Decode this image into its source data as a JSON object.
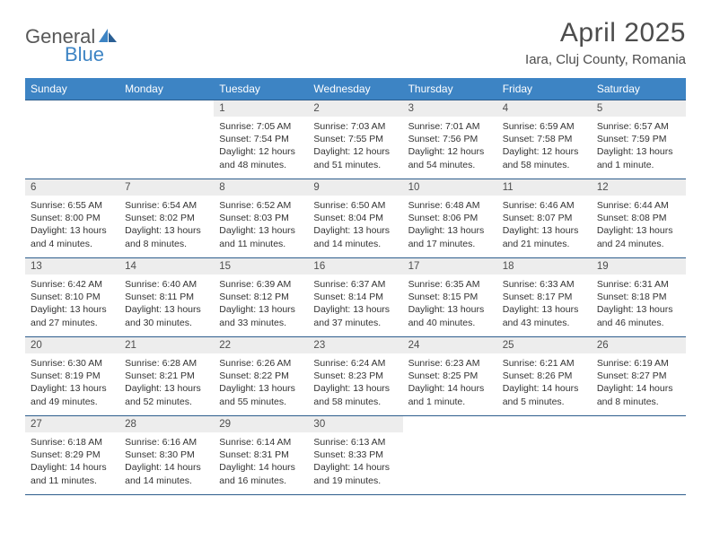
{
  "brand": {
    "general": "General",
    "blue": "Blue"
  },
  "title": "April 2025",
  "location": "Iara, Cluj County, Romania",
  "colors": {
    "header_bg": "#3d84c4",
    "header_text": "#ffffff",
    "daynum_bg": "#ededed",
    "border": "#2d5d8c",
    "title_text": "#4d4d4d"
  },
  "daysOfWeek": [
    "Sunday",
    "Monday",
    "Tuesday",
    "Wednesday",
    "Thursday",
    "Friday",
    "Saturday"
  ],
  "weeks": [
    [
      null,
      null,
      {
        "n": "1",
        "sr": "Sunrise: 7:05 AM",
        "ss": "Sunset: 7:54 PM",
        "dl": "Daylight: 12 hours and 48 minutes."
      },
      {
        "n": "2",
        "sr": "Sunrise: 7:03 AM",
        "ss": "Sunset: 7:55 PM",
        "dl": "Daylight: 12 hours and 51 minutes."
      },
      {
        "n": "3",
        "sr": "Sunrise: 7:01 AM",
        "ss": "Sunset: 7:56 PM",
        "dl": "Daylight: 12 hours and 54 minutes."
      },
      {
        "n": "4",
        "sr": "Sunrise: 6:59 AM",
        "ss": "Sunset: 7:58 PM",
        "dl": "Daylight: 12 hours and 58 minutes."
      },
      {
        "n": "5",
        "sr": "Sunrise: 6:57 AM",
        "ss": "Sunset: 7:59 PM",
        "dl": "Daylight: 13 hours and 1 minute."
      }
    ],
    [
      {
        "n": "6",
        "sr": "Sunrise: 6:55 AM",
        "ss": "Sunset: 8:00 PM",
        "dl": "Daylight: 13 hours and 4 minutes."
      },
      {
        "n": "7",
        "sr": "Sunrise: 6:54 AM",
        "ss": "Sunset: 8:02 PM",
        "dl": "Daylight: 13 hours and 8 minutes."
      },
      {
        "n": "8",
        "sr": "Sunrise: 6:52 AM",
        "ss": "Sunset: 8:03 PM",
        "dl": "Daylight: 13 hours and 11 minutes."
      },
      {
        "n": "9",
        "sr": "Sunrise: 6:50 AM",
        "ss": "Sunset: 8:04 PM",
        "dl": "Daylight: 13 hours and 14 minutes."
      },
      {
        "n": "10",
        "sr": "Sunrise: 6:48 AM",
        "ss": "Sunset: 8:06 PM",
        "dl": "Daylight: 13 hours and 17 minutes."
      },
      {
        "n": "11",
        "sr": "Sunrise: 6:46 AM",
        "ss": "Sunset: 8:07 PM",
        "dl": "Daylight: 13 hours and 21 minutes."
      },
      {
        "n": "12",
        "sr": "Sunrise: 6:44 AM",
        "ss": "Sunset: 8:08 PM",
        "dl": "Daylight: 13 hours and 24 minutes."
      }
    ],
    [
      {
        "n": "13",
        "sr": "Sunrise: 6:42 AM",
        "ss": "Sunset: 8:10 PM",
        "dl": "Daylight: 13 hours and 27 minutes."
      },
      {
        "n": "14",
        "sr": "Sunrise: 6:40 AM",
        "ss": "Sunset: 8:11 PM",
        "dl": "Daylight: 13 hours and 30 minutes."
      },
      {
        "n": "15",
        "sr": "Sunrise: 6:39 AM",
        "ss": "Sunset: 8:12 PM",
        "dl": "Daylight: 13 hours and 33 minutes."
      },
      {
        "n": "16",
        "sr": "Sunrise: 6:37 AM",
        "ss": "Sunset: 8:14 PM",
        "dl": "Daylight: 13 hours and 37 minutes."
      },
      {
        "n": "17",
        "sr": "Sunrise: 6:35 AM",
        "ss": "Sunset: 8:15 PM",
        "dl": "Daylight: 13 hours and 40 minutes."
      },
      {
        "n": "18",
        "sr": "Sunrise: 6:33 AM",
        "ss": "Sunset: 8:17 PM",
        "dl": "Daylight: 13 hours and 43 minutes."
      },
      {
        "n": "19",
        "sr": "Sunrise: 6:31 AM",
        "ss": "Sunset: 8:18 PM",
        "dl": "Daylight: 13 hours and 46 minutes."
      }
    ],
    [
      {
        "n": "20",
        "sr": "Sunrise: 6:30 AM",
        "ss": "Sunset: 8:19 PM",
        "dl": "Daylight: 13 hours and 49 minutes."
      },
      {
        "n": "21",
        "sr": "Sunrise: 6:28 AM",
        "ss": "Sunset: 8:21 PM",
        "dl": "Daylight: 13 hours and 52 minutes."
      },
      {
        "n": "22",
        "sr": "Sunrise: 6:26 AM",
        "ss": "Sunset: 8:22 PM",
        "dl": "Daylight: 13 hours and 55 minutes."
      },
      {
        "n": "23",
        "sr": "Sunrise: 6:24 AM",
        "ss": "Sunset: 8:23 PM",
        "dl": "Daylight: 13 hours and 58 minutes."
      },
      {
        "n": "24",
        "sr": "Sunrise: 6:23 AM",
        "ss": "Sunset: 8:25 PM",
        "dl": "Daylight: 14 hours and 1 minute."
      },
      {
        "n": "25",
        "sr": "Sunrise: 6:21 AM",
        "ss": "Sunset: 8:26 PM",
        "dl": "Daylight: 14 hours and 5 minutes."
      },
      {
        "n": "26",
        "sr": "Sunrise: 6:19 AM",
        "ss": "Sunset: 8:27 PM",
        "dl": "Daylight: 14 hours and 8 minutes."
      }
    ],
    [
      {
        "n": "27",
        "sr": "Sunrise: 6:18 AM",
        "ss": "Sunset: 8:29 PM",
        "dl": "Daylight: 14 hours and 11 minutes."
      },
      {
        "n": "28",
        "sr": "Sunrise: 6:16 AM",
        "ss": "Sunset: 8:30 PM",
        "dl": "Daylight: 14 hours and 14 minutes."
      },
      {
        "n": "29",
        "sr": "Sunrise: 6:14 AM",
        "ss": "Sunset: 8:31 PM",
        "dl": "Daylight: 14 hours and 16 minutes."
      },
      {
        "n": "30",
        "sr": "Sunrise: 6:13 AM",
        "ss": "Sunset: 8:33 PM",
        "dl": "Daylight: 14 hours and 19 minutes."
      },
      null,
      null,
      null
    ]
  ]
}
